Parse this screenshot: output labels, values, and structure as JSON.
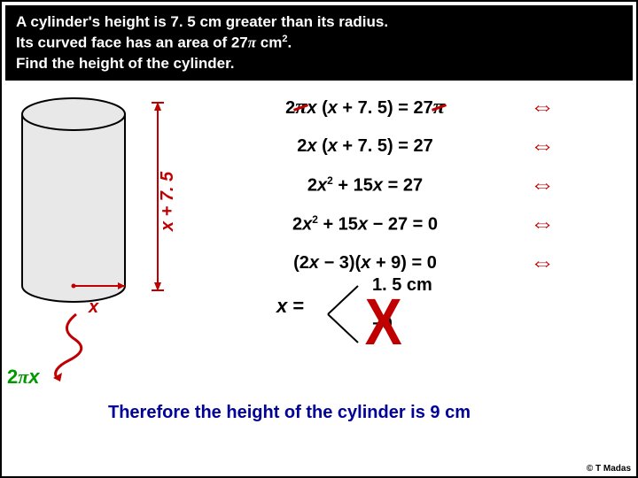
{
  "problem": {
    "line1": "A cylinder's height is 7. 5 cm greater than its radius.",
    "line2_a": "Its curved face has an area of  27",
    "line2_b": "  cm",
    "line2_c": ".",
    "line3": "Find the height of the cylinder."
  },
  "diagram": {
    "height_label": "x + 7. 5",
    "radius_label": "x",
    "circumference_prefix": "2",
    "circumference_var": "x",
    "cylinder_fill": "#e8e8e8",
    "cylinder_stroke": "#000000",
    "arrow_color": "#c00000",
    "squiggle_color": "#c00000"
  },
  "equations": [
    {
      "html": "2<span class='strike'><span class='pi'>π</span></span><span class='x'>x</span> (<span class='x'>x</span> + 7. 5) = 27<span class='strike'><span class='pi'>π</span></span>",
      "arrow": "⇔"
    },
    {
      "html": "2<span class='x'>x</span> (<span class='x'>x</span> + 7. 5) = 27",
      "arrow": "⇔"
    },
    {
      "html": "2<span class='x'>x</span><sup>2</sup>  + 15<span class='x'>x</span> = 27",
      "arrow": "⇔"
    },
    {
      "html": "2<span class='x'>x</span><sup>2</sup>  + 15<span class='x'>x</span> − 27  = 0",
      "arrow": "⇔"
    },
    {
      "html": "(2<span class='x'>x</span> − 3)(<span class='x'>x</span> + 9) = 0",
      "arrow": "⇔"
    }
  ],
  "solutions": {
    "x_eq": "x",
    "eq_sign": " = ",
    "sol1": "1. 5 cm",
    "sol2": "−9"
  },
  "conclusion": "Therefore the height of the cylinder is 9 cm",
  "credit": "© T Madas",
  "colors": {
    "arrow": "#c00000",
    "height_label": "#c00000",
    "circ": "#009900",
    "conclusion": "#000099"
  }
}
